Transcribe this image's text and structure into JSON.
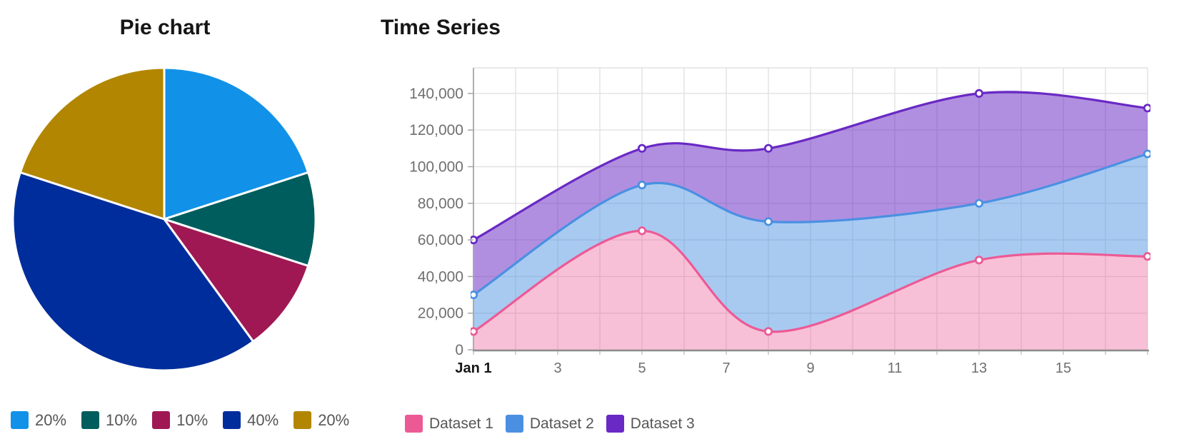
{
  "chart_data": [
    {
      "type": "pie",
      "title": "Pie chart",
      "labels": [
        "20%",
        "10%",
        "10%",
        "40%",
        "20%"
      ],
      "values": [
        20,
        10,
        10,
        40,
        20
      ],
      "colors": [
        "#1192e8",
        "#005d5d",
        "#9f1853",
        "#002d9c",
        "#b28600"
      ],
      "start_angle_deg": -90,
      "direction": "clockwise",
      "legend_position": "bottom"
    },
    {
      "type": "area",
      "title": "Time Series",
      "x": [
        1,
        5,
        8,
        13,
        17
      ],
      "series": [
        {
          "name": "Dataset 1",
          "color": "#ec5a96",
          "values": [
            10000,
            65000,
            10000,
            49000,
            51000
          ]
        },
        {
          "name": "Dataset 2",
          "color": "#4a90e2",
          "values": [
            30000,
            90000,
            70000,
            80000,
            107000
          ]
        },
        {
          "name": "Dataset 3",
          "color": "#6929c4",
          "values": [
            60000,
            110000,
            110000,
            140000,
            132000
          ]
        }
      ],
      "x_axis": {
        "min": 1,
        "max": 17,
        "grid_step": 1,
        "tick_positions": [
          1,
          3,
          5,
          7,
          9,
          11,
          13,
          15
        ],
        "tick_labels": [
          "Jan 1",
          "3",
          "5",
          "7",
          "9",
          "11",
          "13",
          "15"
        ]
      },
      "y_axis": {
        "min": 0,
        "max": 154000,
        "tick_step": 20000,
        "tick_labels": [
          "0",
          "20,000",
          "40,000",
          "60,000",
          "80,000",
          "100,000",
          "120,000",
          "140,000"
        ]
      },
      "grid": true,
      "curve": "smooth",
      "fill": "band-to-previous-series",
      "markers": "white-filled-circles",
      "legend_position": "bottom"
    }
  ]
}
